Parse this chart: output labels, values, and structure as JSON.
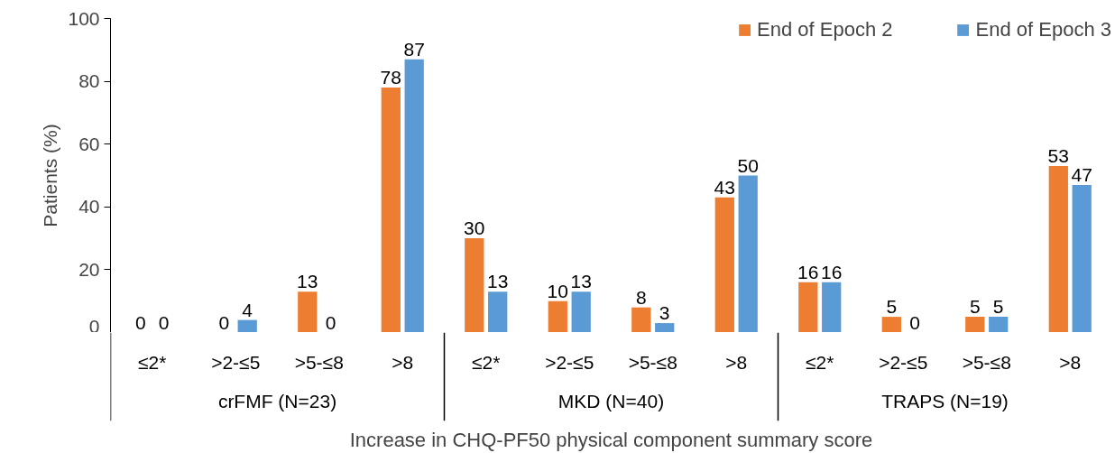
{
  "chart_data": {
    "type": "bar",
    "xlabel": "Increase in CHQ-PF50 physical component summary score",
    "ylabel": "Patients (%)",
    "categories": [
      "≤2*",
      ">2-≤5",
      ">5-≤8",
      ">8",
      "≤2*",
      ">2-≤5",
      ">5-≤8",
      ">8",
      "≤2*",
      ">2-≤5",
      ">5-≤8",
      ">8"
    ],
    "series": [
      {
        "name": "End of Epoch 2",
        "color": "#ed7d31",
        "values": [
          0,
          0,
          13,
          78,
          30,
          10,
          8,
          43,
          16,
          5,
          5,
          53
        ]
      },
      {
        "name": "End of Epoch 3",
        "color": "#5b9bd5",
        "values": [
          0,
          4,
          0,
          87,
          13,
          13,
          3,
          50,
          16,
          0,
          5,
          47
        ]
      }
    ],
    "annotations": [
      "crFMF (N=23)",
      "MKD (N=40)",
      "TRAPS (N=19)"
    ],
    "ylim": [
      0,
      100
    ],
    "yticks": [
      0,
      20,
      40,
      60,
      80,
      100
    ],
    "grid": false,
    "legend": "top right",
    "data_labels": true
  }
}
